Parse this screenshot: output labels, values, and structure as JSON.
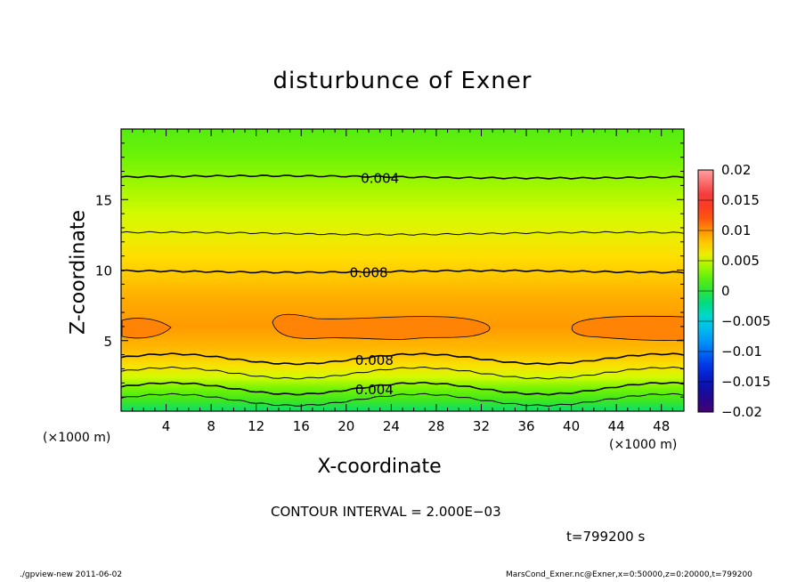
{
  "chart_data": {
    "type": "heatmap",
    "title": "disturbunce of Exner",
    "xlabel": "X-coordinate",
    "ylabel": "Z-coordinate",
    "x_unit": "(×1000 m)",
    "xlim": [
      0,
      50
    ],
    "ylim": [
      0,
      20
    ],
    "x_ticks": [
      "4",
      "8",
      "12",
      "16",
      "20",
      "24",
      "28",
      "32",
      "36",
      "40",
      "44",
      "48"
    ],
    "y_ticks": [
      "5",
      "10",
      "15"
    ],
    "colorbar": {
      "ticks": [
        "0.02",
        "0.015",
        "0.01",
        "0.005",
        "0",
        "−0.005",
        "−0.01",
        "−0.015",
        "−0.02"
      ],
      "range": [
        -0.02,
        0.02
      ]
    },
    "contour_labels": [
      {
        "text": "0.004",
        "x": 23,
        "z": 16.5
      },
      {
        "text": "0.008",
        "x": 22,
        "z": 9.8
      },
      {
        "text": "0.008",
        "x": 22.5,
        "z": 3.6
      },
      {
        "text": "0.004",
        "x": 22.5,
        "z": 1.5
      }
    ],
    "band_levels": [
      {
        "z": 0,
        "value": -0.0015
      },
      {
        "z": 0.8,
        "value": 0.001
      },
      {
        "z": 1.6,
        "value": 0.003
      },
      {
        "z": 2.4,
        "value": 0.005
      },
      {
        "z": 3.2,
        "value": 0.0068
      },
      {
        "z": 4.3,
        "value": 0.0085
      },
      {
        "z": 6.0,
        "value": 0.0098
      },
      {
        "z": 7.8,
        "value": 0.0092
      },
      {
        "z": 9.2,
        "value": 0.0082
      },
      {
        "z": 10.8,
        "value": 0.0072
      },
      {
        "z": 12.4,
        "value": 0.006
      },
      {
        "z": 14.0,
        "value": 0.005
      },
      {
        "z": 16.0,
        "value": 0.004
      },
      {
        "z": 18.0,
        "value": 0.0028
      },
      {
        "z": 20.0,
        "value": 0.0018
      }
    ],
    "contour_interval": "CONTOUR INTERVAL = 2.000E−03",
    "time": "t=799200 s"
  },
  "footer": {
    "left": "./gpview-new   2011-06-02",
    "right": "MarsCond_Exner.nc@Exner,x=0:50000,z=0:20000,t=799200"
  }
}
